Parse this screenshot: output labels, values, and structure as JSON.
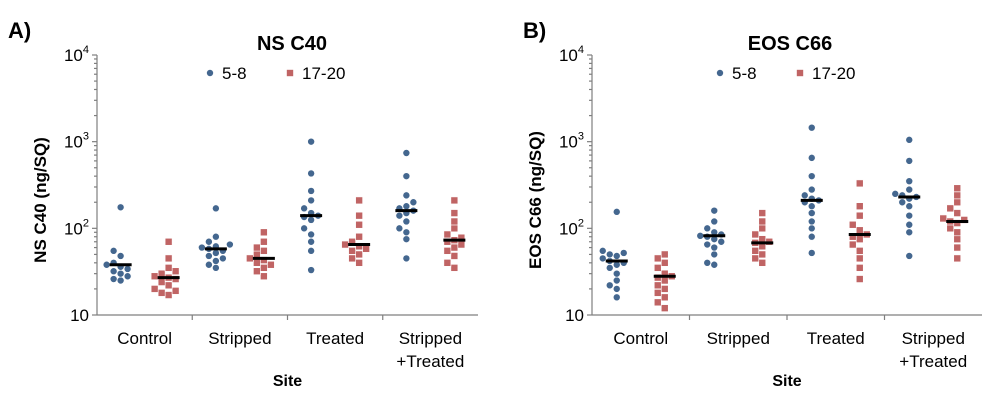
{
  "colors": {
    "series1": "#44678f",
    "series2": "#c06464",
    "median": "#000000",
    "axis": "#7f7f7f"
  },
  "chart_data": [
    {
      "type": "scatter",
      "panel_label": "A)",
      "title": "NS C40",
      "ylabel": "NS C40 (ng/SQ)",
      "xlabel": "Site",
      "yscale": "log",
      "ylim": [
        10,
        10000
      ],
      "yticks": [
        {
          "base": "10",
          "exp": ""
        },
        {
          "base": "10",
          "exp": "2"
        },
        {
          "base": "10",
          "exp": "3"
        },
        {
          "base": "10",
          "exp": "4"
        }
      ],
      "categories": [
        [
          "Control"
        ],
        [
          "Stripped"
        ],
        [
          "Treated"
        ],
        [
          "Stripped",
          "+Treated"
        ]
      ],
      "legend_position": "top-center",
      "series": [
        {
          "name": "5-8",
          "marker": "circle",
          "color": "#44678f",
          "medians": [
            38,
            58,
            140,
            160
          ],
          "values": [
            [
              175,
              55,
              48,
              40,
              38,
              36,
              34,
              32,
              30,
              28,
              26,
              25
            ],
            [
              170,
              80,
              70,
              65,
              62,
              60,
              58,
              55,
              52,
              48,
              45,
              42,
              38,
              35
            ],
            [
              1000,
              430,
              270,
              210,
              170,
              150,
              140,
              135,
              125,
              100,
              85,
              70,
              55,
              33
            ],
            [
              740,
              400,
              240,
              200,
              180,
              170,
              160,
              150,
              140,
              120,
              100,
              90,
              75,
              45
            ]
          ]
        },
        {
          "name": "17-20",
          "marker": "square",
          "color": "#c06464",
          "medians": [
            27,
            45,
            65,
            73
          ],
          "values": [
            [
              70,
              45,
              35,
              32,
              30,
              28,
              27,
              26,
              24,
              22,
              20,
              19,
              18,
              17
            ],
            [
              90,
              70,
              60,
              55,
              50,
              45,
              43,
              40,
              38,
              35,
              32,
              28
            ],
            [
              210,
              140,
              110,
              80,
              70,
              65,
              62,
              58,
              55,
              50,
              45,
              40
            ],
            [
              210,
              150,
              120,
              100,
              85,
              78,
              73,
              70,
              65,
              60,
              55,
              48,
              40,
              35
            ]
          ]
        }
      ]
    },
    {
      "type": "scatter",
      "panel_label": "B)",
      "title": "EOS C66",
      "ylabel": "EOS C66 (ng/SQ)",
      "xlabel": "Site",
      "yscale": "log",
      "ylim": [
        10,
        10000
      ],
      "yticks": [
        {
          "base": "10",
          "exp": ""
        },
        {
          "base": "10",
          "exp": "2"
        },
        {
          "base": "10",
          "exp": "3"
        },
        {
          "base": "10",
          "exp": "4"
        }
      ],
      "categories": [
        [
          "Control"
        ],
        [
          "Stripped"
        ],
        [
          "Treated"
        ],
        [
          "Stripped",
          "+Treated"
        ]
      ],
      "legend_position": "top-center",
      "series": [
        {
          "name": "5-8",
          "marker": "circle",
          "color": "#44678f",
          "medians": [
            42,
            82,
            210,
            230
          ],
          "values": [
            [
              155,
              55,
              52,
              50,
              48,
              45,
              42,
              40,
              38,
              35,
              30,
              25,
              22,
              20,
              16
            ],
            [
              160,
              120,
              100,
              90,
              85,
              82,
              80,
              75,
              70,
              65,
              60,
              50,
              40,
              38
            ],
            [
              1450,
              650,
              400,
              280,
              240,
              220,
              210,
              200,
              180,
              150,
              120,
              100,
              80,
              52
            ],
            [
              1050,
              600,
              350,
              280,
              250,
              240,
              230,
              220,
              200,
              180,
              140,
              110,
              90,
              48
            ]
          ]
        },
        {
          "name": "17-20",
          "marker": "square",
          "color": "#c06464",
          "medians": [
            28,
            68,
            85,
            120
          ],
          "values": [
            [
              50,
              45,
              40,
              35,
              30,
              28,
              27,
              25,
              22,
              20,
              18,
              16,
              14,
              12
            ],
            [
              150,
              120,
              100,
              85,
              75,
              70,
              68,
              62,
              55,
              50,
              45,
              40
            ],
            [
              330,
              180,
              140,
              110,
              95,
              85,
              80,
              75,
              65,
              55,
              45,
              35,
              26
            ],
            [
              290,
              240,
              200,
              170,
              150,
              130,
              125,
              120,
              115,
              100,
              90,
              75,
              60,
              45
            ]
          ]
        }
      ]
    }
  ]
}
